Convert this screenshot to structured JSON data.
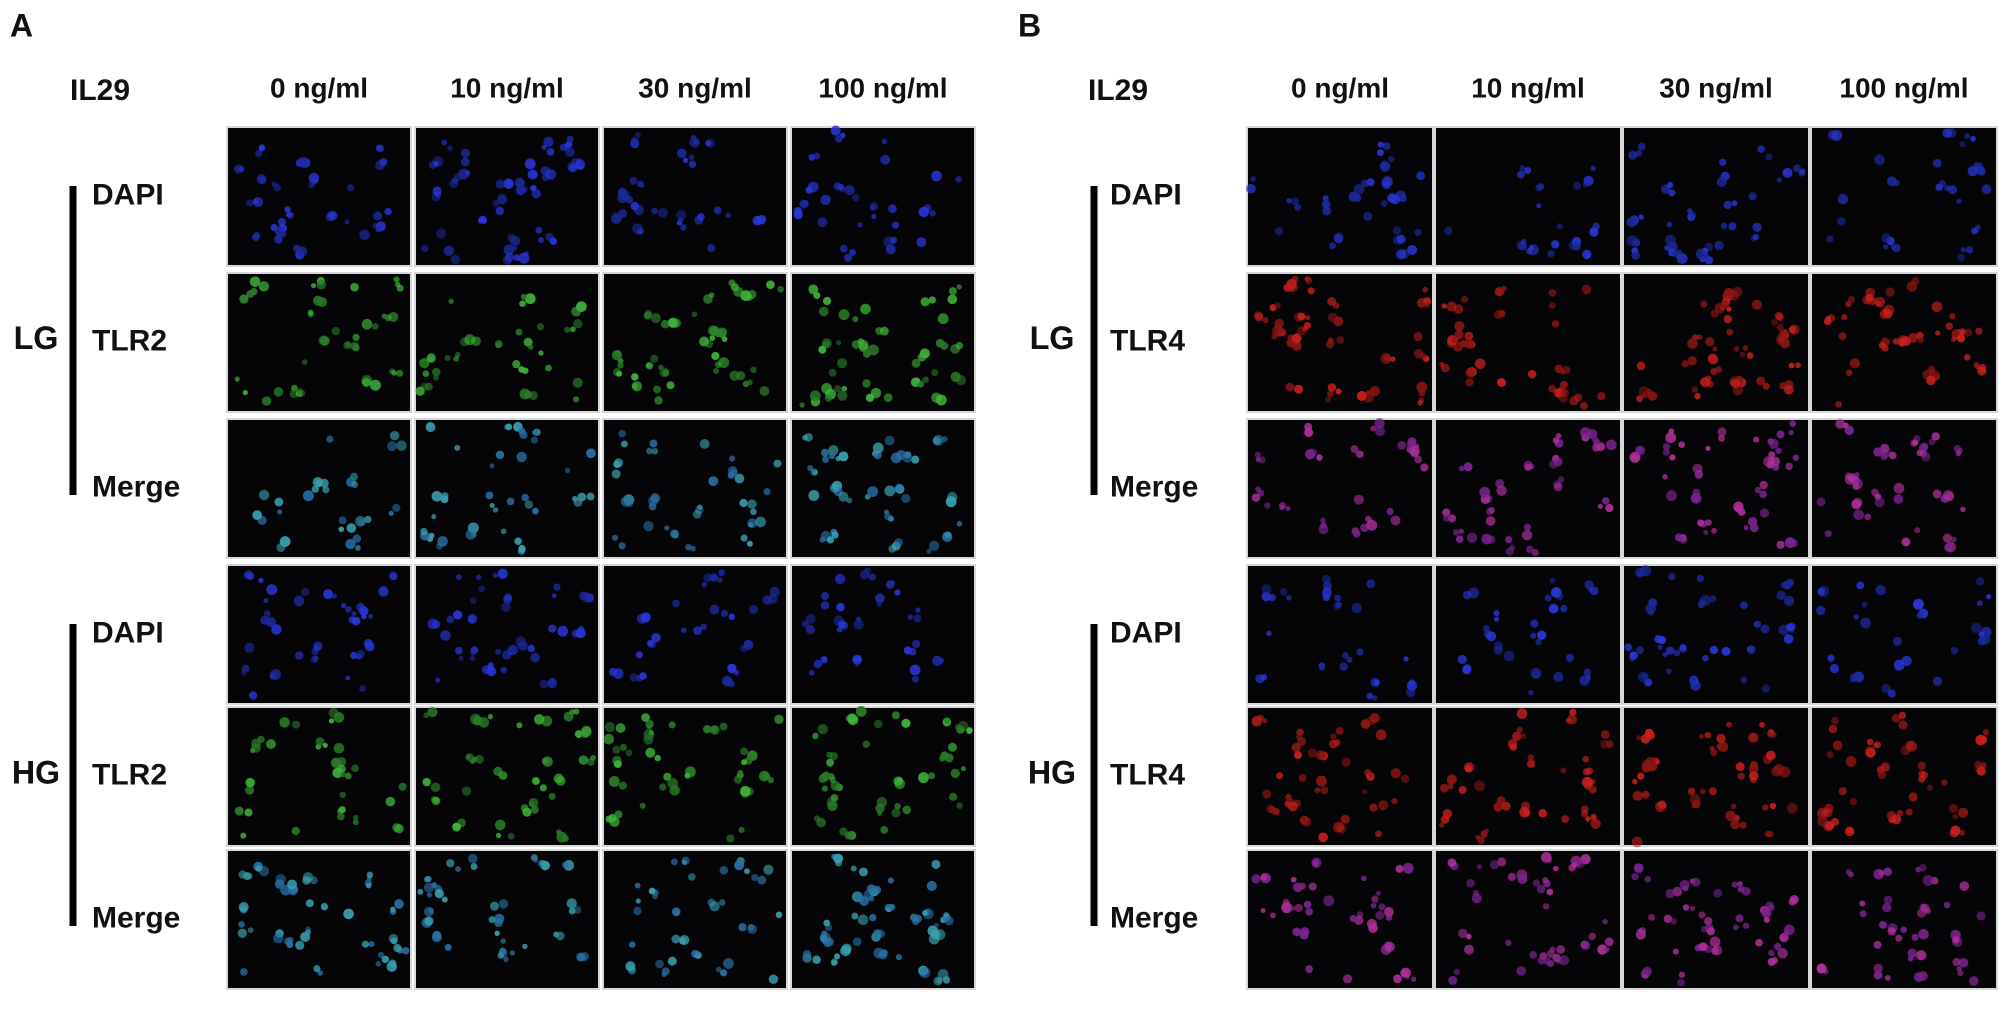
{
  "panels": [
    {
      "label": "A",
      "treatment": "IL29",
      "columns": [
        "0 ng/ml",
        "10 ng/ml",
        "30 ng/ml",
        "100 ng/ml"
      ],
      "groups": [
        {
          "name": "LG",
          "rows": [
            "DAPI",
            "TLR2",
            "Merge"
          ]
        },
        {
          "name": "HG",
          "rows": [
            "DAPI",
            "TLR2",
            "Merge"
          ]
        }
      ]
    },
    {
      "label": "B",
      "treatment": "IL29",
      "columns": [
        "0 ng/ml",
        "10 ng/ml",
        "30 ng/ml",
        "100 ng/ml"
      ],
      "groups": [
        {
          "name": "LG",
          "rows": [
            "DAPI",
            "TLR4",
            "Merge"
          ]
        },
        {
          "name": "HG",
          "rows": [
            "DAPI",
            "TLR4",
            "Merge"
          ]
        }
      ]
    }
  ]
}
